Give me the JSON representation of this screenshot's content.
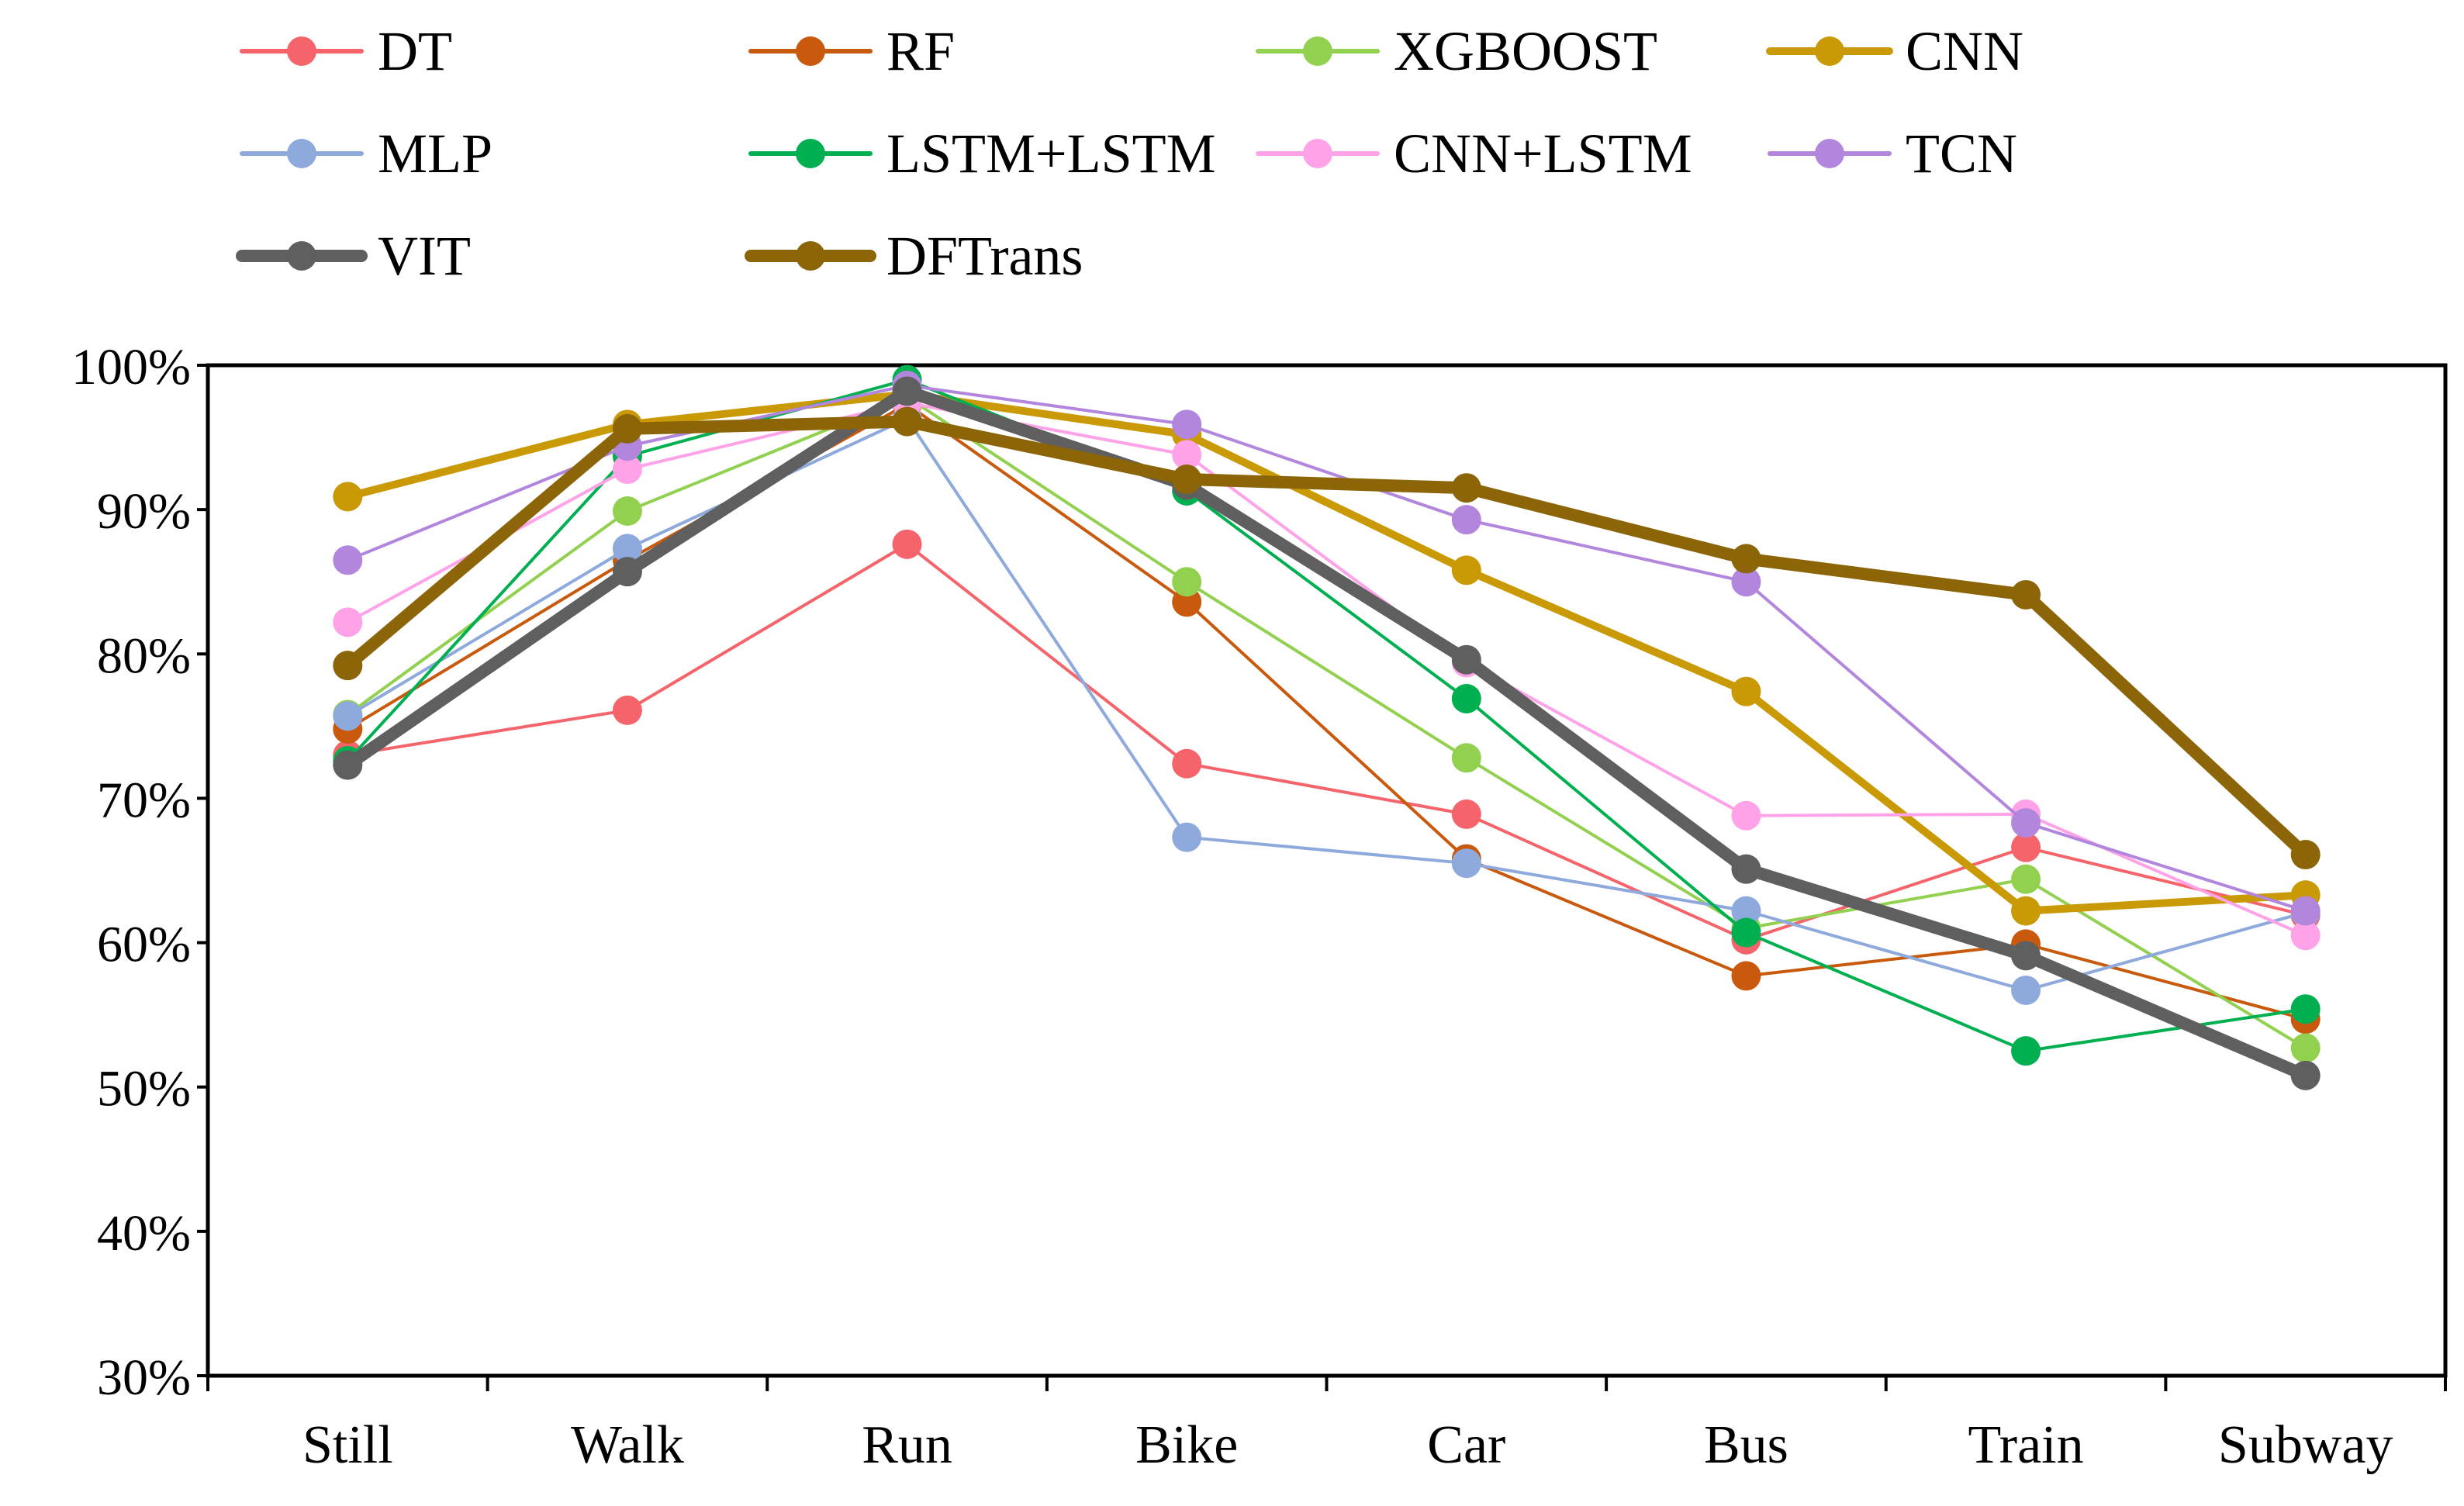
{
  "chart_data": {
    "type": "line",
    "title": "",
    "xlabel": "",
    "ylabel": "",
    "categories": [
      "Still",
      "Walk",
      "Run",
      "Bike",
      "Car",
      "Bus",
      "Train",
      "Subway"
    ],
    "ylim": [
      30,
      100
    ],
    "y_ticks": [
      30,
      40,
      50,
      60,
      70,
      80,
      90,
      100
    ],
    "y_tick_labels": [
      "30%",
      "40%",
      "50%",
      "60%",
      "70%",
      "80%",
      "90%",
      "100%"
    ],
    "grid": false,
    "legend_position": "top",
    "series": [
      {
        "name": "DT",
        "color": "#F4646A",
        "values": [
          73.0,
          76.1,
          87.6,
          72.4,
          68.9,
          60.2,
          66.6,
          61.9
        ]
      },
      {
        "name": "RF",
        "color": "#C8590D",
        "values": [
          74.8,
          86.5,
          97.3,
          83.6,
          65.8,
          57.7,
          59.9,
          54.7
        ]
      },
      {
        "name": "XGBOOST",
        "color": "#92D050",
        "values": [
          75.8,
          89.9,
          97.8,
          85.0,
          72.8,
          61.0,
          64.4,
          52.7
        ]
      },
      {
        "name": "CNN",
        "color": "#C99A06",
        "values": [
          90.9,
          95.9,
          98.0,
          95.2,
          85.8,
          77.4,
          62.2,
          63.3
        ]
      },
      {
        "name": "MLP",
        "color": "#8EA9DB",
        "values": [
          75.7,
          87.3,
          96.3,
          67.3,
          65.5,
          62.2,
          56.7,
          62.1
        ]
      },
      {
        "name": "LSTM+LSTM",
        "color": "#00B050",
        "values": [
          72.6,
          93.7,
          99.0,
          91.3,
          76.9,
          60.7,
          52.5,
          55.4
        ]
      },
      {
        "name": "CNN+LSTM",
        "color": "#FFA2E8",
        "values": [
          82.2,
          92.8,
          97.4,
          93.8,
          79.4,
          68.8,
          68.9,
          60.5
        ]
      },
      {
        "name": "TCN",
        "color": "#B286DD",
        "values": [
          86.5,
          94.4,
          98.6,
          95.9,
          89.3,
          85.0,
          68.3,
          62.2
        ]
      },
      {
        "name": "VIT",
        "color": "#5F5F5F",
        "values": [
          72.3,
          85.7,
          98.2,
          91.7,
          79.6,
          65.1,
          59.1,
          50.8
        ]
      },
      {
        "name": "DFTrans",
        "color": "#8B6508",
        "values": [
          79.2,
          95.6,
          96.1,
          92.1,
          91.5,
          86.6,
          84.1,
          66.1
        ]
      }
    ]
  }
}
